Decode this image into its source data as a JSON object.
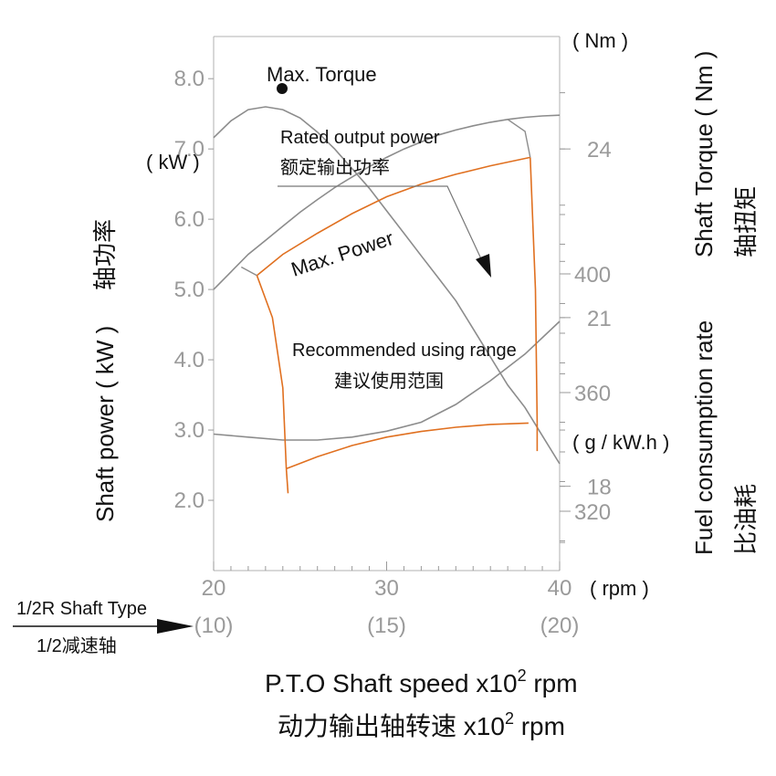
{
  "chart_data": {
    "type": "line",
    "title": "",
    "colors": {
      "curve": "#8c8c8c",
      "range": "#e07020",
      "text": "#111111",
      "tick": "#9a9a9a"
    },
    "x_axis": {
      "label": "P.T.O Shaft speed x10",
      "label_sup": "2",
      "label_unit": " rpm",
      "label_cn": "动力输出轴转速 x10",
      "label_cn_sup": "2",
      "label_cn_unit": " rpm",
      "unit": "( rpm )",
      "range": [
        20,
        40
      ],
      "ticks": [
        "20",
        "30",
        "40"
      ],
      "secondary_ticks": [
        "(10)",
        "(15)",
        "(20)"
      ],
      "reduction_label": "1/2R Shaft Type",
      "reduction_label_cn": "1/2减速轴"
    },
    "power_axis": {
      "label": "Shaft power ( kW )",
      "label_cn": "轴功率",
      "unit": "( kW )",
      "range": [
        1.0,
        8.6
      ],
      "ticks": [
        "8.0",
        "7.0",
        "6.0",
        "5.0",
        "4.0",
        "3.0",
        "2.0"
      ]
    },
    "torque_axis": {
      "label": "Shaft Torque ( Nm )",
      "label_cn": "轴扭矩",
      "unit": "( Nm )",
      "range": [
        16.5,
        26.0
      ],
      "ticks": [
        "24",
        "21",
        "18"
      ]
    },
    "fuel_axis": {
      "label": "Fuel consumption  rate",
      "label_cn": "比油耗",
      "unit": "( g / kW.h )",
      "range": [
        300,
        480
      ],
      "ticks": [
        "400",
        "360",
        "320"
      ]
    },
    "series": [
      {
        "name": "Max. Torque",
        "axis": "torque",
        "x": [
          20,
          21,
          22,
          23,
          24,
          25,
          26,
          27,
          28,
          29,
          30,
          31,
          32,
          33,
          34,
          35,
          36,
          37,
          38,
          39,
          40
        ],
        "y": [
          24.2,
          24.5,
          24.7,
          24.75,
          24.7,
          24.55,
          24.3,
          24.0,
          23.65,
          23.3,
          22.9,
          22.5,
          22.1,
          21.7,
          21.3,
          20.8,
          20.3,
          19.8,
          19.4,
          18.9,
          18.4
        ]
      },
      {
        "name": "Max. Power",
        "axis": "power",
        "x": [
          20,
          21,
          22,
          23,
          24,
          25,
          26,
          27,
          28,
          29,
          30,
          31,
          32,
          33,
          34,
          35,
          36,
          37,
          38,
          39,
          40
        ],
        "y": [
          5.0,
          5.25,
          5.5,
          5.7,
          5.9,
          6.1,
          6.28,
          6.45,
          6.6,
          6.75,
          6.88,
          7.0,
          7.1,
          7.2,
          7.27,
          7.33,
          7.38,
          7.42,
          7.45,
          7.47,
          7.48
        ]
      },
      {
        "name": "Fuel consumption rate",
        "axis": "fuel",
        "x": [
          20,
          22,
          24,
          26,
          28,
          30,
          32,
          34,
          36,
          38,
          40
        ],
        "y": [
          346,
          345,
          344,
          344,
          345,
          347,
          350,
          356,
          364,
          373,
          384
        ]
      },
      {
        "name": "Rated output power",
        "axis": "power",
        "x": [
          22.5,
          24,
          26,
          28,
          30,
          32,
          34,
          36,
          38.3
        ],
        "y": [
          5.2,
          5.5,
          5.8,
          6.08,
          6.32,
          6.5,
          6.64,
          6.76,
          6.88
        ]
      }
    ],
    "recommended_range": {
      "label": "Recommended using range",
      "label_cn": "建议使用范围",
      "upper": {
        "x": [
          22.5,
          24,
          26,
          28,
          30,
          32,
          34,
          36,
          38.3
        ],
        "y": [
          5.2,
          5.5,
          5.8,
          6.08,
          6.32,
          6.5,
          6.64,
          6.76,
          6.88
        ]
      },
      "lower": {
        "x": [
          24.2,
          26,
          28,
          30,
          32,
          34,
          36,
          38.2
        ],
        "y": [
          2.45,
          2.62,
          2.78,
          2.9,
          2.98,
          3.04,
          3.08,
          3.1
        ]
      },
      "left_edge": {
        "x": [
          22.5,
          23.4,
          24.0,
          24.2
        ],
        "y": [
          5.2,
          4.6,
          3.6,
          2.45
        ]
      },
      "left_tail": {
        "x": [
          24.2,
          24.3
        ],
        "y": [
          2.45,
          2.1
        ]
      },
      "right_edge": {
        "x": [
          38.3,
          38.6,
          38.7
        ],
        "y": [
          6.88,
          5.0,
          3.1
        ]
      },
      "right_tail": {
        "x": [
          38.7,
          38.7
        ],
        "y": [
          3.1,
          2.7
        ]
      }
    },
    "annotations": {
      "max_torque": "Max. Torque",
      "max_power": "Max. Power",
      "rated_power": "Rated output power",
      "rated_power_cn": "额定输出功率"
    }
  }
}
